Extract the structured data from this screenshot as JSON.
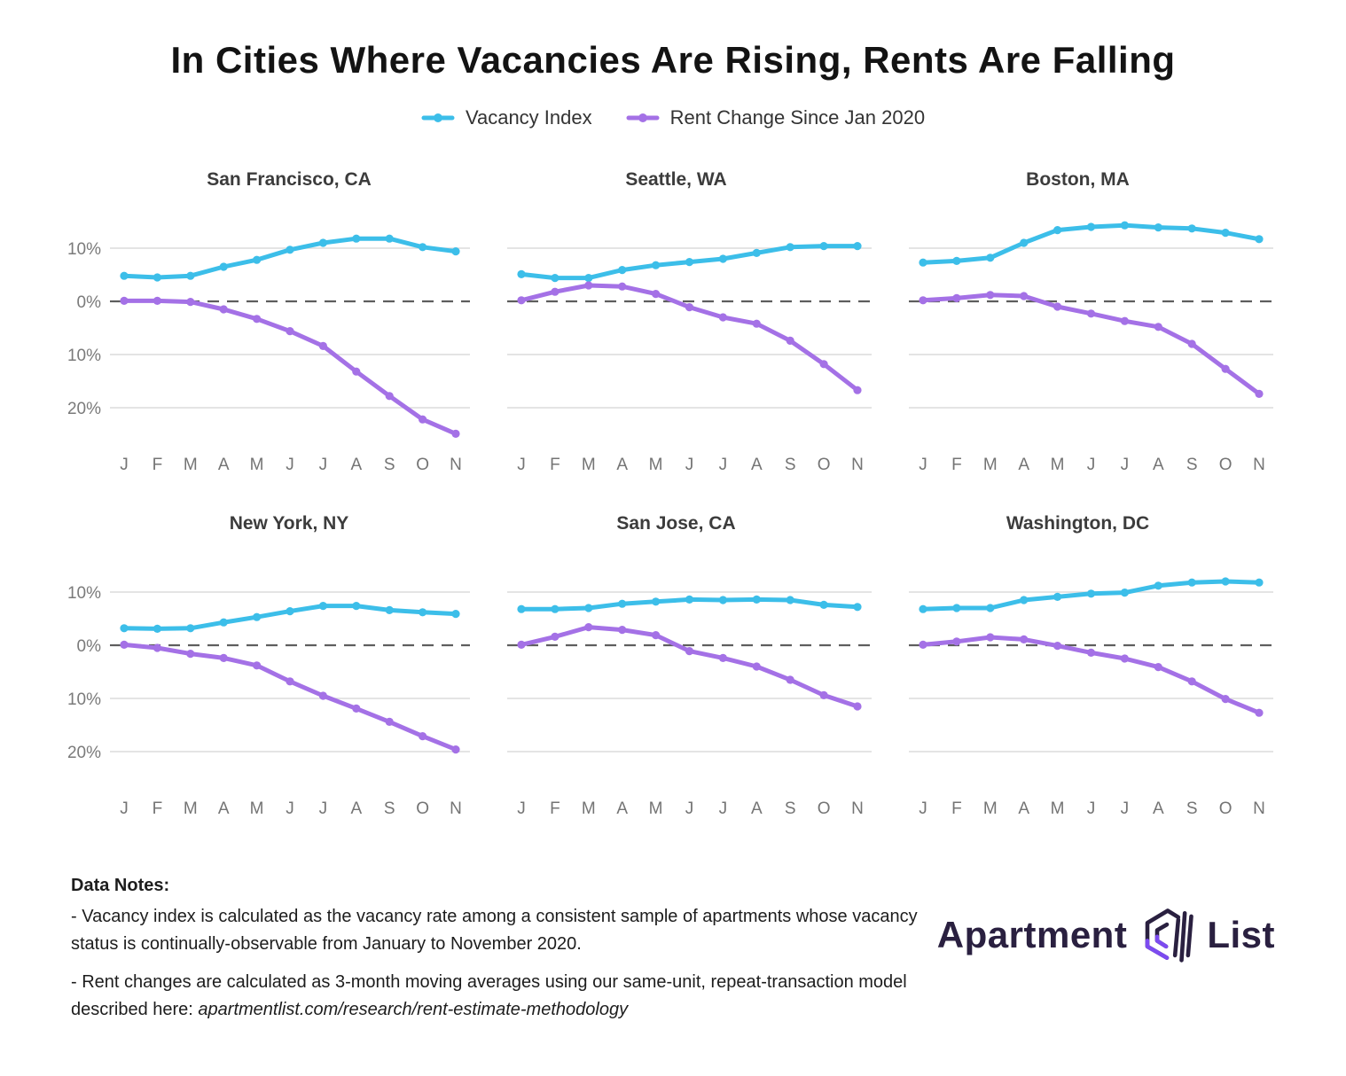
{
  "title": "In Cities Where Vacancies Are Rising, Rents Are Falling",
  "chart_data": {
    "type": "line",
    "x_labels": [
      "J",
      "F",
      "M",
      "A",
      "M",
      "J",
      "J",
      "A",
      "S",
      "O",
      "N"
    ],
    "x_label_meaning": "January through November 2020",
    "y_ticks": [
      10,
      0,
      -10,
      -20
    ],
    "y_tick_labels": [
      "10%",
      "0%",
      "-10%",
      "-20%"
    ],
    "ylim": [
      18,
      -26
    ],
    "grid": "horizontal-only",
    "zero_line": "dashed",
    "legend_position": "top-center",
    "series_meta": [
      {
        "key": "vacancy_index",
        "label": "Vacancy Index",
        "color": "#3cbee9"
      },
      {
        "key": "rent_change",
        "label": "Rent Change Since Jan 2020",
        "color": "#a471e6"
      }
    ],
    "charts": [
      {
        "title": "San Francisco, CA",
        "series": {
          "vacancy_index": [
            4.8,
            4.5,
            4.8,
            6.5,
            7.8,
            9.7,
            11.0,
            11.8,
            11.8,
            10.2,
            9.4
          ],
          "rent_change": [
            0.1,
            0.1,
            -0.1,
            -1.5,
            -3.3,
            -5.6,
            -8.4,
            -13.2,
            -17.8,
            -22.2,
            -24.9
          ]
        }
      },
      {
        "title": "Seattle, WA",
        "series": {
          "vacancy_index": [
            5.1,
            4.4,
            4.4,
            5.9,
            6.8,
            7.4,
            8.0,
            9.1,
            10.2,
            10.4,
            10.4
          ],
          "rent_change": [
            0.2,
            1.8,
            3.0,
            2.8,
            1.4,
            -1.1,
            -3.0,
            -4.2,
            -7.4,
            -11.8,
            -16.7
          ]
        }
      },
      {
        "title": "Boston, MA",
        "series": {
          "vacancy_index": [
            7.3,
            7.6,
            8.2,
            11.0,
            13.4,
            14.0,
            14.3,
            13.9,
            13.7,
            12.9,
            11.7
          ],
          "rent_change": [
            0.2,
            0.6,
            1.2,
            1.0,
            -1.0,
            -2.3,
            -3.7,
            -4.8,
            -8.0,
            -12.7,
            -17.4
          ]
        }
      },
      {
        "title": "New York, NY",
        "series": {
          "vacancy_index": [
            3.2,
            3.1,
            3.2,
            4.3,
            5.3,
            6.4,
            7.4,
            7.4,
            6.6,
            6.2,
            5.9
          ],
          "rent_change": [
            0.1,
            -0.5,
            -1.6,
            -2.4,
            -3.8,
            -6.8,
            -9.5,
            -11.9,
            -14.4,
            -17.1,
            -19.6
          ]
        }
      },
      {
        "title": "San Jose, CA",
        "series": {
          "vacancy_index": [
            6.8,
            6.8,
            7.0,
            7.8,
            8.2,
            8.6,
            8.5,
            8.6,
            8.5,
            7.6,
            7.2
          ],
          "rent_change": [
            0.1,
            1.6,
            3.4,
            2.9,
            1.9,
            -1.1,
            -2.4,
            -4.0,
            -6.5,
            -9.4,
            -11.5
          ]
        }
      },
      {
        "title": "Washington, DC",
        "series": {
          "vacancy_index": [
            6.8,
            7.0,
            7.0,
            8.5,
            9.1,
            9.7,
            9.9,
            11.2,
            11.8,
            12.0,
            11.8
          ],
          "rent_change": [
            0.1,
            0.7,
            1.5,
            1.1,
            -0.1,
            -1.4,
            -2.5,
            -4.1,
            -6.8,
            -10.1,
            -12.7
          ]
        }
      }
    ]
  },
  "notes": {
    "heading": "Data Notes:",
    "bullet1": "- Vacancy index is calculated as the vacancy rate among a consistent sample of apartments whose vacancy status is continually-observable from January to November 2020.",
    "bullet2_prefix": "- Rent changes are calculated as 3-month moving averages using our same-unit, repeat-transaction model described here: ",
    "bullet2_link": "apartmentlist.com/research/rent-estimate-methodology"
  },
  "logo": {
    "word1": "Apartment",
    "word2": "List",
    "navy": "#2a2040",
    "purple": "#7c4bf0"
  },
  "style_colors": {
    "gridline": "#dcdcdc",
    "zero_line": "#5e5e5e",
    "tick_label": "#7a7a7a",
    "month_label": "#747474"
  }
}
